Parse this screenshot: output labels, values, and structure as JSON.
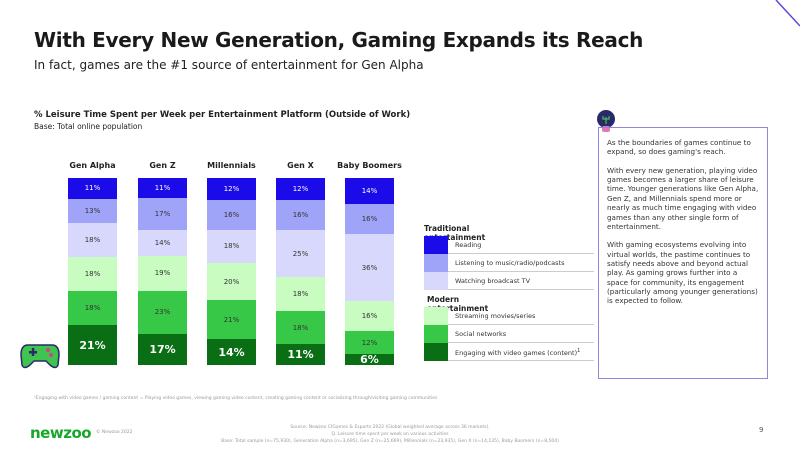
{
  "header": {
    "title": "With Every New Generation, Gaming Expands its Reach",
    "subtitle": "In fact, games are the #1 source of entertainment for Gen Alpha"
  },
  "chart_data": {
    "type": "bar",
    "stacked": true,
    "title": "% Leisure Time Spent per Week per Entertainment Platform (Outside of Work)",
    "subtitle": "Base: Total online population",
    "categories": [
      "Gen Alpha",
      "Gen Z",
      "Millennials",
      "Gen X",
      "Baby Boomers"
    ],
    "series": [
      {
        "name": "Reading",
        "group": "Traditional entertainment",
        "color": "#1a0be8",
        "values": [
          11,
          11,
          12,
          12,
          14
        ]
      },
      {
        "name": "Listening to music/radio/podcasts",
        "group": "Traditional entertainment",
        "color": "#a0a4f8",
        "values": [
          13,
          17,
          16,
          16,
          16
        ]
      },
      {
        "name": "Watching broadcast TV",
        "group": "Traditional entertainment",
        "color": "#d8d8fc",
        "values": [
          18,
          14,
          18,
          25,
          36
        ]
      },
      {
        "name": "Streaming movies/series",
        "group": "Modern entertainment",
        "color": "#c8fcc0",
        "values": [
          18,
          19,
          20,
          18,
          16
        ]
      },
      {
        "name": "Social networks",
        "group": "Modern entertainment",
        "color": "#38c848",
        "values": [
          18,
          23,
          21,
          18,
          12
        ]
      },
      {
        "name": "Engaging with video games (content)",
        "group": "Modern entertainment",
        "color": "#0a6e14",
        "values": [
          21,
          17,
          14,
          11,
          6
        ]
      }
    ],
    "unit": "%",
    "legend_groups": [
      "Traditional entertainment",
      "Modern entertainment"
    ],
    "legend_placement": "right",
    "footnote_mark": "1"
  },
  "note": {
    "paragraphs": [
      "As the boundaries of games continue to expand, so does gaming's reach.",
      "With every new generation, playing video games becomes a larger share of leisure time. Younger generations like Gen Alpha, Gen Z, and Millennials spend more or nearly as much time engaging with video games than any other single form of entertainment.",
      "With gaming ecosystems evolving into virtual worlds, the pastime continues to satisfy needs above and beyond actual play. As gaming grows further into a space for community, its engagement (particularly among younger generations) is expected to follow."
    ]
  },
  "footer": {
    "footnote": "¹Engaging with video games / gaming content = Playing video games, viewing gaming video content, creating gaming content or socializing through/visiting gaming communities",
    "source": [
      "Source: Newzoo CIGames & Esports 2022 (Global weighted average across 36 markets).",
      "Q. Leisure time spent per week on various activities",
      "Base: Total sample (n=75,930), Generation Alpha (n=3,695), Gen Z (n=25,669), Millennials (n=23,935), Gen X (n=14,135), Baby Boomers (n=8,504)"
    ],
    "logo": "newzoo",
    "copyright": "© Newzoo 2022",
    "page": "9"
  }
}
